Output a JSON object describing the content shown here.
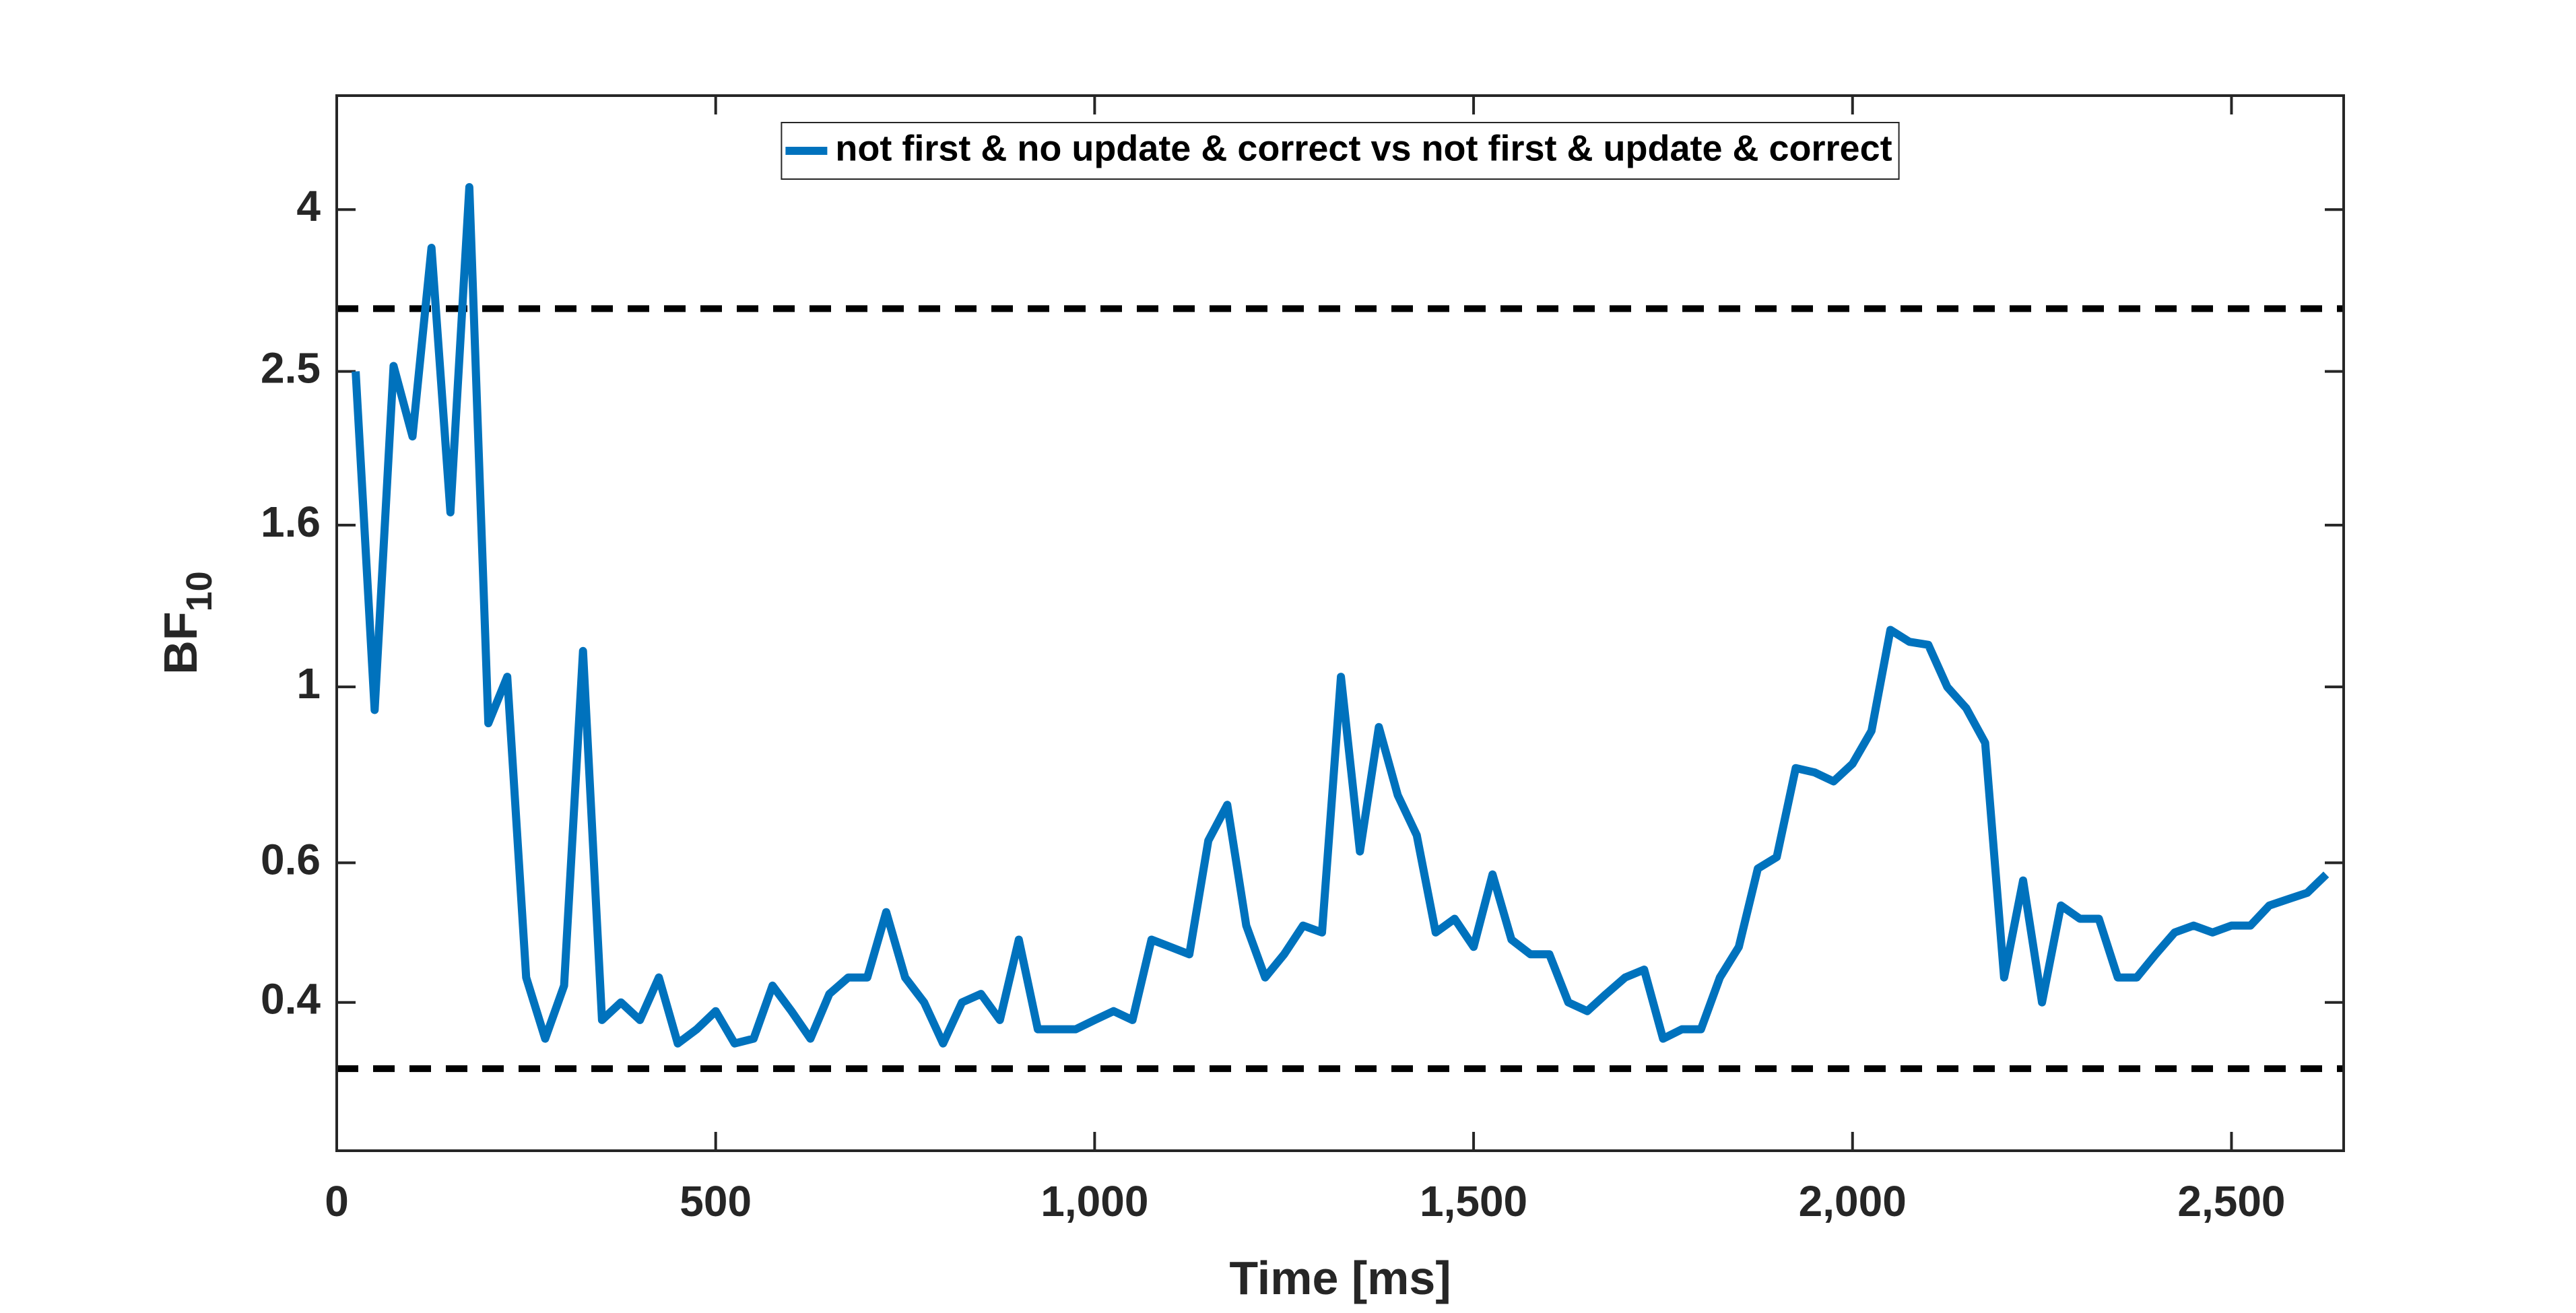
{
  "chart_data": {
    "type": "line",
    "xlabel": "Time [ms]",
    "ylabel": "BF",
    "ylabel_subscript": "10",
    "yscale": "log",
    "xlim": [
      0,
      2648
    ],
    "ylim": [
      0.26,
      5.57
    ],
    "xticks": [
      0,
      500,
      {
        "value": 1000,
        "label": "1,000"
      },
      {
        "value": 1500,
        "label": "1,500"
      },
      {
        "value": 2000,
        "label": "2,000"
      },
      {
        "value": 2500,
        "label": "2,500"
      }
    ],
    "yticks": [
      0.4,
      0.6,
      1,
      1.6,
      2.5,
      4
    ],
    "reference_lines": [
      3,
      0.33
    ],
    "reference_color": "#000000",
    "legend": "top",
    "x": [
      25,
      50,
      75,
      100,
      125,
      150,
      175,
      200,
      225,
      250,
      275,
      300,
      325,
      350,
      375,
      400,
      425,
      450,
      475,
      500,
      525,
      550,
      575,
      600,
      625,
      650,
      675,
      700,
      725,
      750,
      775,
      800,
      825,
      850,
      875,
      900,
      925,
      950,
      975,
      1000,
      1025,
      1050,
      1075,
      1100,
      1125,
      1150,
      1175,
      1200,
      1225,
      1250,
      1275,
      1300,
      1325,
      1350,
      1375,
      1400,
      1425,
      1450,
      1475,
      1500,
      1525,
      1550,
      1575,
      1600,
      1625,
      1650,
      1675,
      1700,
      1725,
      1750,
      1775,
      1800,
      1825,
      1850,
      1875,
      1900,
      1925,
      1950,
      1975,
      2000,
      2025,
      2050,
      2075,
      2100,
      2125,
      2150,
      2175,
      2200,
      2225,
      2250,
      2275,
      2300,
      2325,
      2350,
      2375,
      2400,
      2425,
      2450,
      2475,
      2500,
      2525,
      2550,
      2575,
      2600,
      2625
    ],
    "series": [
      {
        "name": "not first & no update & correct vs not first & update & correct",
        "color": "#0072bd",
        "values": [
          2.5,
          0.935,
          2.54,
          2.07,
          3.58,
          1.66,
          4.27,
          0.9,
          1.03,
          0.43,
          0.36,
          0.42,
          1.11,
          0.38,
          0.4,
          0.38,
          0.43,
          0.355,
          0.37,
          0.39,
          0.355,
          0.36,
          0.42,
          0.39,
          0.36,
          0.41,
          0.43,
          0.43,
          0.52,
          0.43,
          0.4,
          0.355,
          0.4,
          0.41,
          0.38,
          0.48,
          0.37,
          0.37,
          0.37,
          0.38,
          0.39,
          0.38,
          0.48,
          0.47,
          0.46,
          0.64,
          0.71,
          0.5,
          0.43,
          0.46,
          0.5,
          0.49,
          1.03,
          0.62,
          0.89,
          0.73,
          0.65,
          0.49,
          0.51,
          0.47,
          0.58,
          0.48,
          0.46,
          0.46,
          0.4,
          0.39,
          0.41,
          0.43,
          0.44,
          0.36,
          0.37,
          0.37,
          0.43,
          0.47,
          0.59,
          0.61,
          0.79,
          0.78,
          0.76,
          0.8,
          0.88,
          1.18,
          1.14,
          1.13,
          1.0,
          0.94,
          0.85,
          0.43,
          0.57,
          0.4,
          0.53,
          0.51,
          0.51,
          0.43,
          0.43,
          0.46,
          0.49,
          0.5,
          0.49,
          0.5,
          0.5,
          0.53,
          0.54,
          0.55,
          0.58
        ]
      }
    ]
  }
}
